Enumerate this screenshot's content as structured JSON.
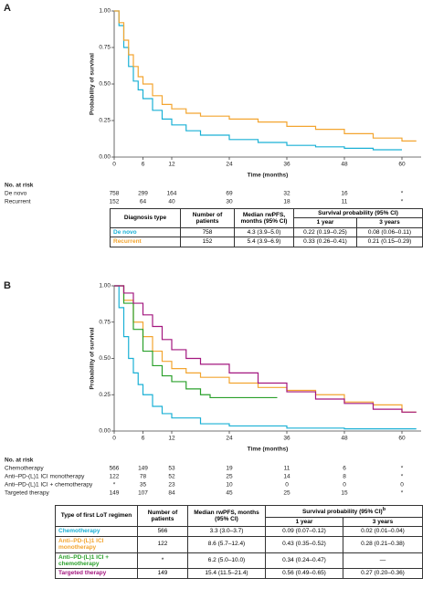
{
  "chart_data": [
    {
      "type": "line",
      "panel": "A",
      "y_label": "Probability of survival",
      "x_label": "Time (months)",
      "xlim": [
        0,
        64
      ],
      "ylim": [
        0,
        1
      ],
      "xticks": [
        0,
        6,
        12,
        24,
        36,
        48,
        60
      ],
      "yticks": [
        {
          "value": 0,
          "label": "0.00"
        },
        {
          "value": 0.25,
          "label": "0.25"
        },
        {
          "value": 0.5,
          "label": "0.50"
        },
        {
          "value": 0.75,
          "label": "0.75"
        },
        {
          "value": 1,
          "label": "1.00"
        }
      ],
      "series": [
        {
          "name": "De novo",
          "color": "#1ab0d5",
          "x": [
            0,
            1,
            2,
            3,
            4,
            5,
            6,
            8,
            10,
            12,
            15,
            18,
            24,
            30,
            36,
            42,
            48,
            54,
            60
          ],
          "values": [
            1.0,
            0.9,
            0.75,
            0.62,
            0.52,
            0.46,
            0.4,
            0.32,
            0.26,
            0.22,
            0.18,
            0.15,
            0.12,
            0.1,
            0.08,
            0.07,
            0.06,
            0.05,
            0.05
          ]
        },
        {
          "name": "Recurrent",
          "color": "#f3a530",
          "x": [
            0,
            1,
            2,
            3,
            4,
            5,
            6,
            8,
            10,
            12,
            15,
            18,
            24,
            30,
            36,
            42,
            48,
            54,
            60,
            63
          ],
          "values": [
            1.0,
            0.92,
            0.8,
            0.7,
            0.62,
            0.55,
            0.5,
            0.42,
            0.36,
            0.33,
            0.3,
            0.28,
            0.26,
            0.24,
            0.21,
            0.19,
            0.16,
            0.13,
            0.11,
            0.11
          ]
        }
      ],
      "risk_table": {
        "title": "No. at risk",
        "rows": [
          {
            "name": "De novo",
            "values": [
              758,
              299,
              164,
              69,
              32,
              16,
              "*"
            ]
          },
          {
            "name": "Recurrent",
            "values": [
              152,
              64,
              40,
              30,
              18,
              11,
              "*"
            ]
          }
        ]
      },
      "summary_table": {
        "columns": [
          "Diagnosis type",
          "Number of patients",
          "Median rwPFS, months (95% CI)"
        ],
        "span_header": "Survival probability (95% CI)",
        "subheaders": [
          "1 year",
          "3 years"
        ],
        "rows": [
          [
            "De novo",
            758,
            "4.3 (3.9–5.0)",
            "0.22 (0.19–0.25)",
            "0.08 (0.06–0.11)"
          ],
          [
            "Recurrent",
            152,
            "5.4 (3.9–6.9)",
            "0.33 (0.26–0.41)",
            "0.21 (0.15–0.29)"
          ]
        ]
      }
    },
    {
      "type": "line",
      "panel": "B",
      "y_label": "Probability of survival",
      "x_label": "Time (months)",
      "xlim": [
        0,
        64
      ],
      "ylim": [
        0,
        1
      ],
      "xticks": [
        0,
        6,
        12,
        24,
        36,
        48,
        60
      ],
      "yticks": [
        {
          "value": 0,
          "label": "0.00"
        },
        {
          "value": 0.25,
          "label": "0.25"
        },
        {
          "value": 0.5,
          "label": "0.50"
        },
        {
          "value": 0.75,
          "label": "0.75"
        },
        {
          "value": 1,
          "label": "1.00"
        }
      ],
      "series": [
        {
          "name": "Chemotherapy",
          "color": "#1ab0d5",
          "x": [
            0,
            1,
            2,
            3,
            4,
            5,
            6,
            8,
            10,
            12,
            18,
            24,
            36,
            48,
            60,
            63
          ],
          "values": [
            1.0,
            0.85,
            0.65,
            0.5,
            0.4,
            0.32,
            0.25,
            0.17,
            0.12,
            0.09,
            0.05,
            0.035,
            0.02,
            0.015,
            0.015,
            0.015
          ]
        },
        {
          "name": "Anti–PD-(L)1 ICI monotherapy",
          "color": "#f3a530",
          "x": [
            0,
            2,
            4,
            6,
            8,
            10,
            12,
            15,
            18,
            24,
            30,
            36,
            42,
            48,
            54,
            60,
            63
          ],
          "values": [
            1.0,
            0.9,
            0.75,
            0.65,
            0.55,
            0.48,
            0.43,
            0.4,
            0.37,
            0.33,
            0.3,
            0.28,
            0.25,
            0.2,
            0.18,
            0.13,
            0.13
          ]
        },
        {
          "name": "Anti–PD-(L)1 ICI + chemotherapy",
          "color": "#2aa02b",
          "x": [
            0,
            2,
            4,
            6,
            8,
            10,
            12,
            15,
            18,
            20,
            34
          ],
          "values": [
            1.0,
            0.88,
            0.7,
            0.55,
            0.45,
            0.38,
            0.34,
            0.29,
            0.25,
            0.23,
            0.23
          ]
        },
        {
          "name": "Targeted therapy",
          "color": "#a3177f",
          "x": [
            0,
            2,
            4,
            6,
            8,
            10,
            12,
            15,
            18,
            24,
            30,
            36,
            42,
            48,
            54,
            60,
            63
          ],
          "values": [
            1.0,
            0.95,
            0.88,
            0.8,
            0.72,
            0.63,
            0.56,
            0.5,
            0.46,
            0.4,
            0.33,
            0.27,
            0.22,
            0.19,
            0.15,
            0.13,
            0.13
          ]
        }
      ],
      "risk_table": {
        "title": "No. at risk",
        "rows": [
          {
            "name": "Chemotherapy",
            "values": [
              566,
              149,
              53,
              19,
              11,
              6,
              "*"
            ]
          },
          {
            "name": "Anti–PD-(L)1 ICI monotherapy",
            "values": [
              122,
              78,
              52,
              25,
              14,
              8,
              "*"
            ]
          },
          {
            "name": "Anti–PD-(L)1 ICI + chemotherapy",
            "values": [
              "*",
              35,
              23,
              10,
              0,
              0,
              0
            ]
          },
          {
            "name": "Targeted therapy",
            "values": [
              149,
              107,
              84,
              45,
              25,
              15,
              "*"
            ]
          }
        ]
      },
      "summary_table": {
        "columns": [
          "Type of first LoT regimen",
          "Number of patients",
          "Median rwPFS, months (95% CI)"
        ],
        "span_header": "Survival probability (95% CI)",
        "span_footnote": "b",
        "subheaders": [
          "1 year",
          "3 years"
        ],
        "rows": [
          [
            "Chemotherapy",
            566,
            "3.3 (3.0–3.7)",
            "0.09 (0.07–0.12)",
            "0.02 (0.01–0.04)"
          ],
          [
            "Anti–PD-(L)1 ICI monotherapy",
            122,
            "8.6 (5.7–12.4)",
            "0.43 (0.35–0.52)",
            "0.28 (0.21–0.38)"
          ],
          [
            "Anti–PD-(L)1 ICI + chemotherapy",
            "*",
            "6.2 (5.0–10.0)",
            "0.34 (0.24–0.47)",
            "—"
          ],
          [
            "Targeted therapy",
            149,
            "15.4 (11.5–21.4)",
            "0.56 (0.49–0.65)",
            "0.27 (0.20–0.36)"
          ]
        ]
      }
    }
  ]
}
